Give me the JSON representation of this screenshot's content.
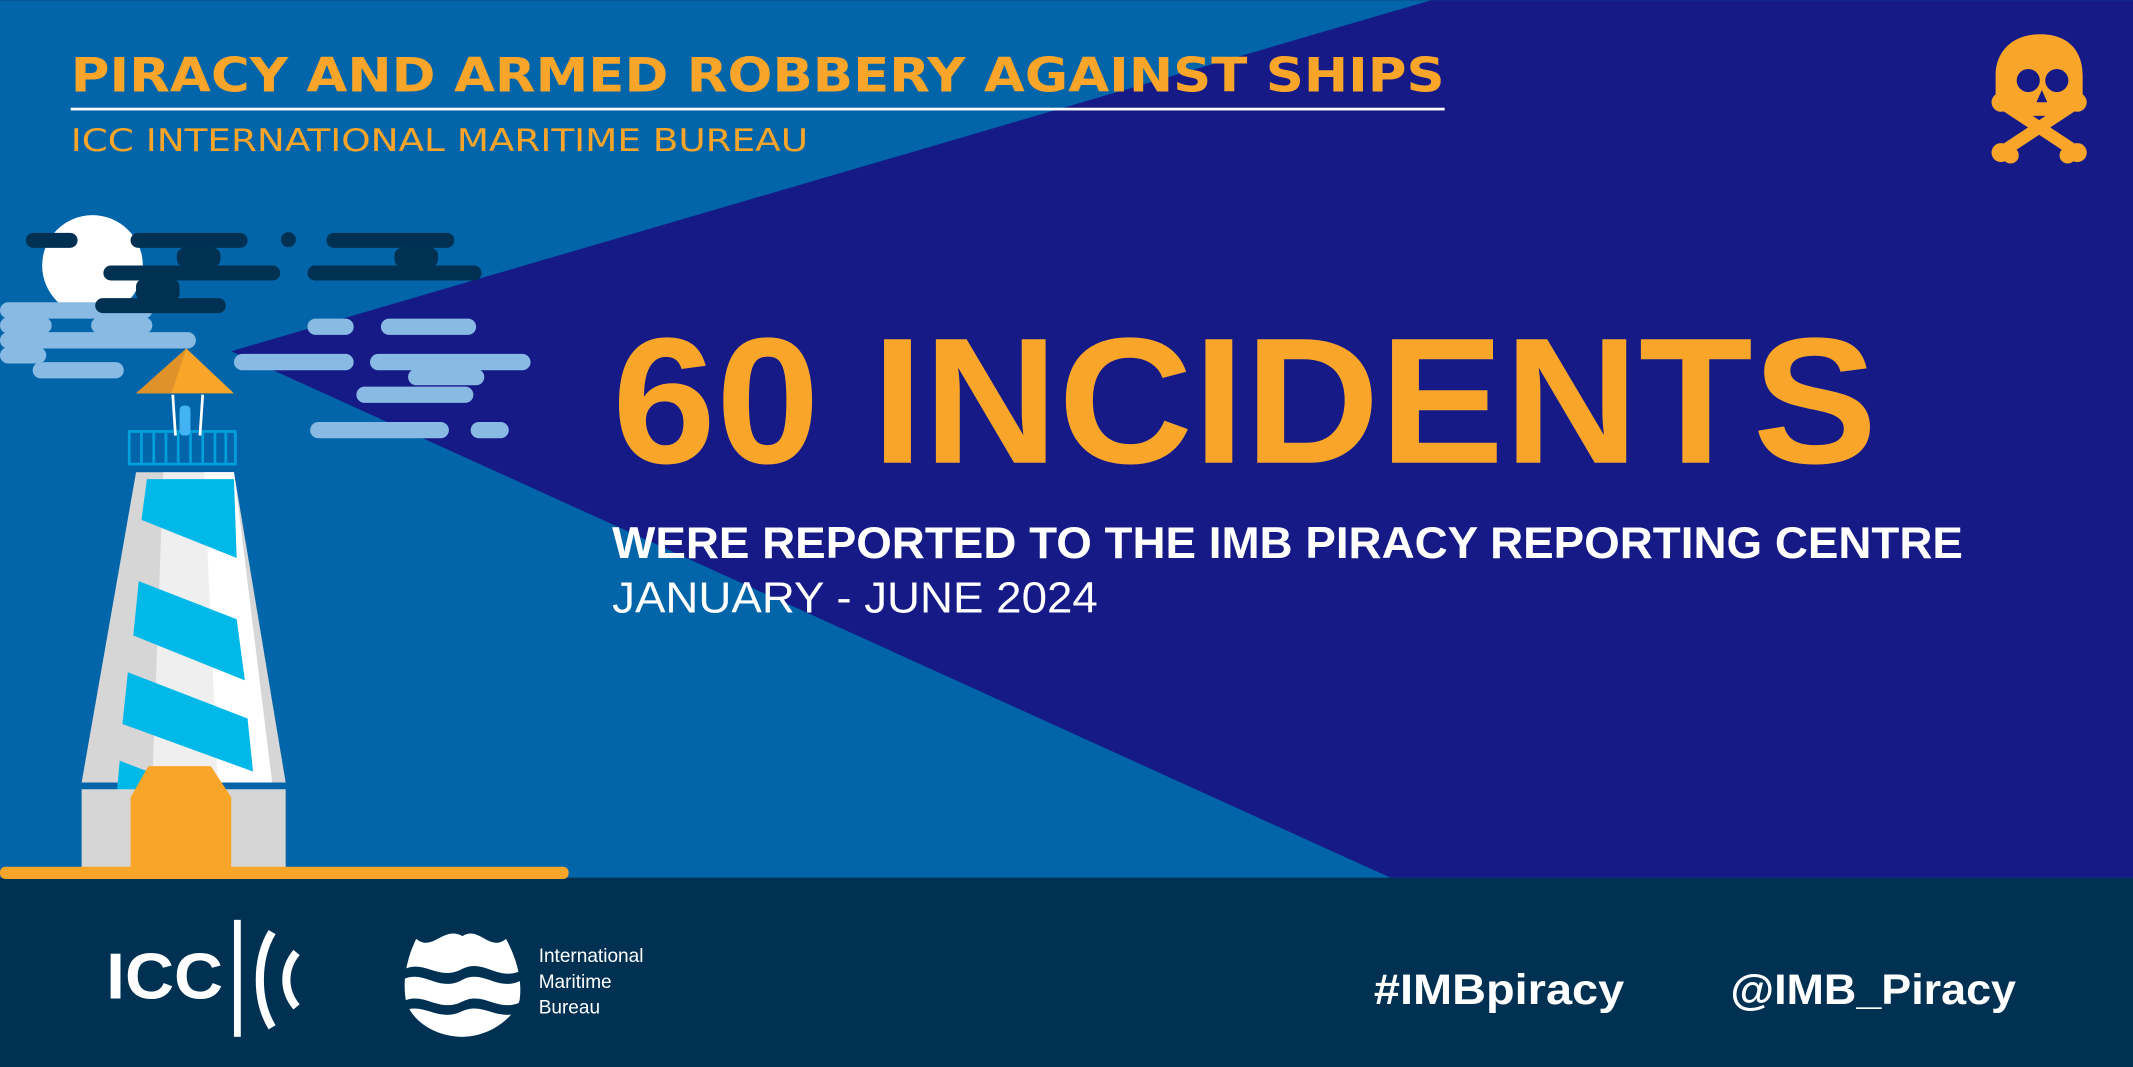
{
  "header": {
    "title": "PIRACY AND ARMED ROBBERY AGAINST SHIPS",
    "subtitle": "ICC INTERNATIONAL MARITIME BUREAU"
  },
  "main": {
    "headline": "60 INCIDENTS",
    "description": "WERE REPORTED TO THE IMB PIRACY REPORTING CENTRE",
    "period": "JANUARY - JUNE 2024"
  },
  "icons": {
    "corner": "skull-and-crossbones-icon",
    "illustration": "lighthouse"
  },
  "footer": {
    "icc_logo_text": "ICC",
    "imb_logo_lines": [
      "International",
      "Maritime",
      "Bureau"
    ],
    "hashtag": "#IMBpiracy",
    "handle": "@IMB_Piracy"
  },
  "colors": {
    "sky_blue": "#0265AA",
    "beam_navy": "#151A87",
    "footer_navy": "#003152",
    "accent_orange": "#F9A52A",
    "stripe_cyan": "#00B9E8",
    "cloud_light": "#89BAE4",
    "cloud_dark": "#003152"
  }
}
